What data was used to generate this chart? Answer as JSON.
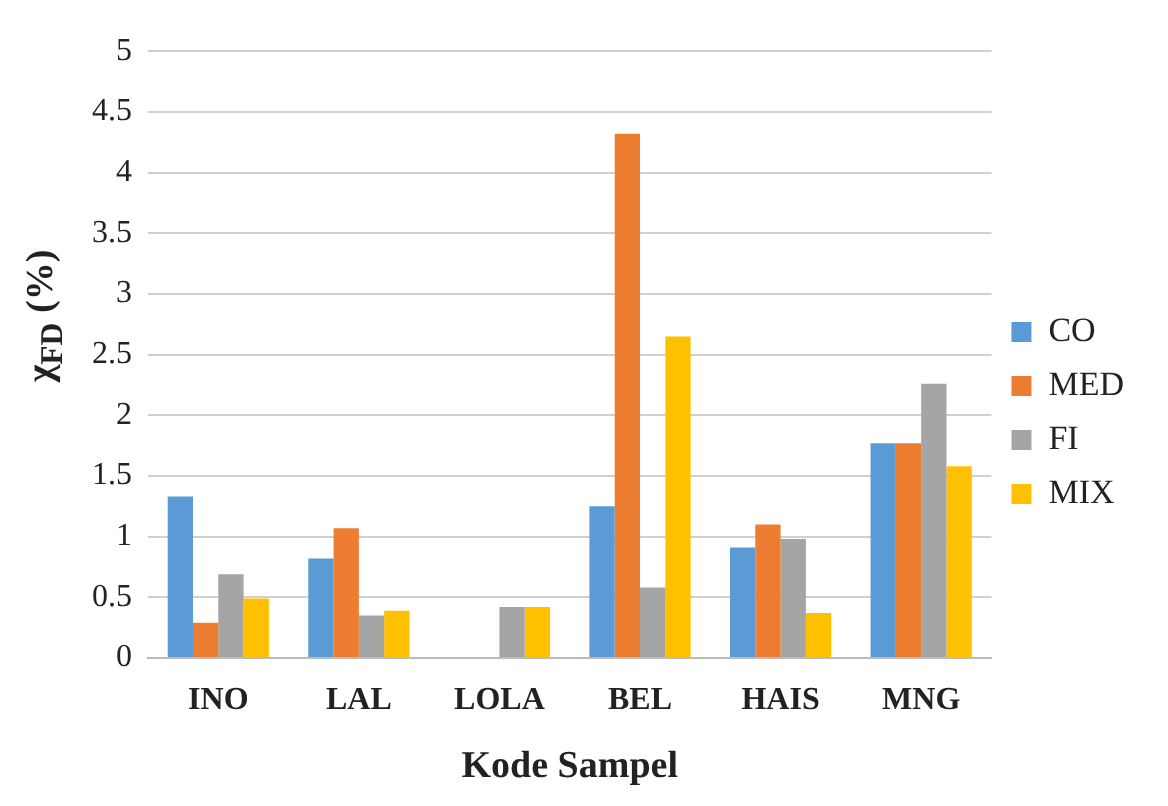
{
  "chart_data": {
    "type": "bar",
    "xlabel": "Kode Sampel",
    "ylabel": "χ$_{FD}$ (%)",
    "categories": [
      "INO",
      "LAL",
      "LOLA",
      "BEL",
      "HAIS",
      "MNG"
    ],
    "series": [
      {
        "name": "CO",
        "color": "#5b9bd5",
        "values": [
          1.33,
          0.82,
          0,
          1.25,
          0.91,
          1.77
        ]
      },
      {
        "name": "MED",
        "color": "#ed7d31",
        "values": [
          0.29,
          1.07,
          0,
          4.32,
          1.1,
          1.77
        ]
      },
      {
        "name": "FI",
        "color": "#a5a5a5",
        "values": [
          0.69,
          0.35,
          0.42,
          0.58,
          0.98,
          2.26
        ]
      },
      {
        "name": "MIX",
        "color": "#ffc000",
        "values": [
          0.49,
          0.39,
          0.42,
          2.65,
          0.37,
          1.58
        ]
      }
    ],
    "ylim": [
      0,
      5
    ],
    "yticks": [
      0,
      0.5,
      1,
      1.5,
      2,
      2.5,
      3,
      3.5,
      4,
      4.5,
      5
    ],
    "grid": "y",
    "legend": "right"
  }
}
